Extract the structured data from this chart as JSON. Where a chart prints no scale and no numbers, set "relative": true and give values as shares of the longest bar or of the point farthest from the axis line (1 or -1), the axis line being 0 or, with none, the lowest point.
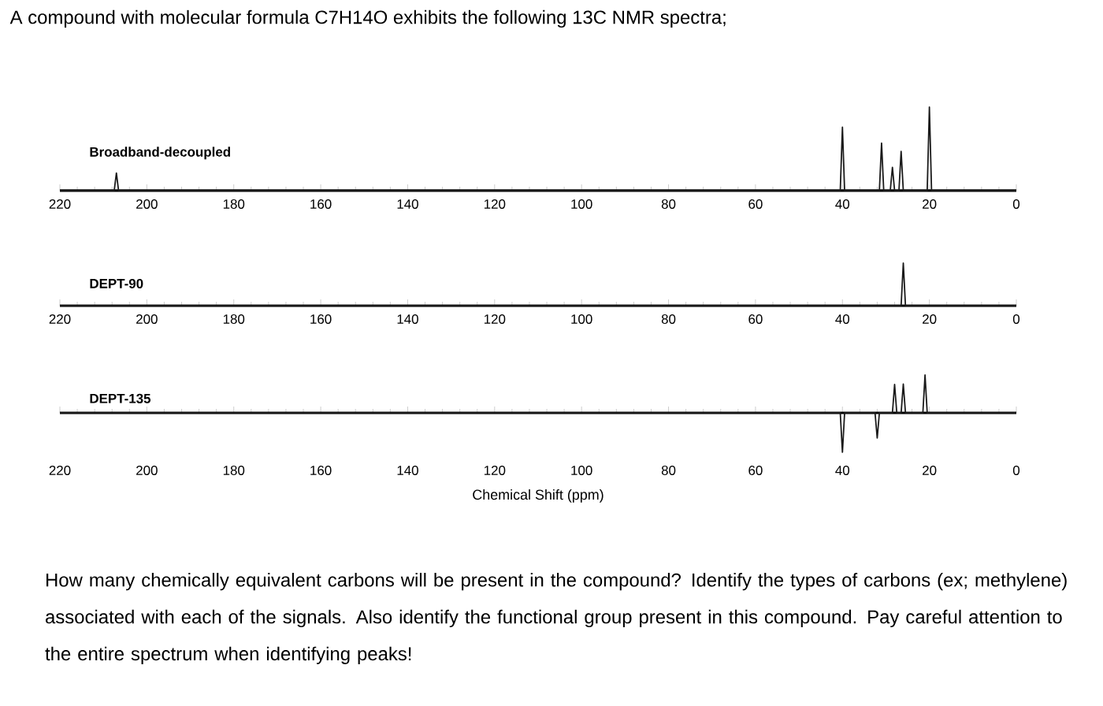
{
  "chart_data": [
    {
      "type": "line",
      "relative": true,
      "title": "A compound with molecular formula C7H14O exhibits the following 13C NMR spectra;",
      "subtitle": "Broadband-decoupled",
      "xlim": [
        220,
        0
      ],
      "xticks": [
        220,
        200,
        180,
        160,
        140,
        120,
        100,
        80,
        60,
        40,
        20,
        0
      ],
      "series": [
        {
          "color": "#1a1a1a",
          "x": [
            220,
            207.5,
            207,
            206.5,
            40.5,
            40,
            39.5,
            31.5,
            31,
            30.5,
            29,
            28.5,
            28,
            27,
            26.5,
            26,
            20.5,
            20,
            19.5,
            0
          ],
          "values": [
            0,
            0,
            0.21,
            0,
            0,
            0.76,
            0,
            0,
            0.57,
            0,
            0,
            0.28,
            0,
            0,
            0.47,
            0,
            0,
            1,
            0,
            0
          ]
        }
      ]
    },
    {
      "type": "line",
      "relative": true,
      "title": "DEPT-90",
      "xlim": [
        220,
        0
      ],
      "xticks": [
        220,
        200,
        180,
        160,
        140,
        120,
        100,
        80,
        60,
        40,
        20,
        0
      ],
      "series": [
        {
          "color": "#1a1a1a",
          "x": [
            220,
            26.5,
            26,
            25.5,
            0
          ],
          "values": [
            0,
            0,
            1,
            0,
            0
          ]
        }
      ]
    },
    {
      "type": "line",
      "relative": true,
      "title": "DEPT-135",
      "xlabel": "Chemical Shift (ppm)",
      "xlim": [
        220,
        0
      ],
      "xticks": [
        220,
        200,
        180,
        160,
        140,
        120,
        100,
        80,
        60,
        40,
        20,
        0
      ],
      "annotations": [
        "How many chemically equivalent carbons will be present in the compound? Identify the types of carbons (ex; methylene) associated with each of the signals. Also identify the functional group present in this compound. Pay careful attention to the entire spectrum when identifying peaks!"
      ],
      "series": [
        {
          "color": "#1a1a1a",
          "x": [
            220,
            40.5,
            40,
            39.5,
            32.5,
            32,
            31.5,
            28.5,
            28,
            27.5,
            26.5,
            26,
            25.5,
            21.5,
            21,
            20.5,
            0
          ],
          "values": [
            0,
            0,
            -1,
            0,
            0,
            -0.64,
            0,
            0,
            0.72,
            0,
            0,
            0.73,
            0,
            0,
            0.96,
            0,
            0
          ]
        }
      ]
    }
  ]
}
